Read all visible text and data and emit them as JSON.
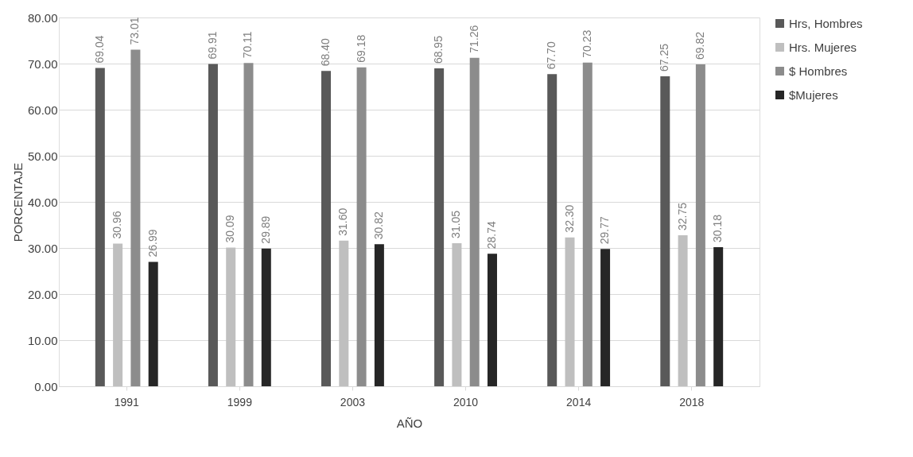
{
  "chart_data": {
    "type": "bar",
    "xlabel": "AÑO",
    "ylabel": "PORCENTAJE",
    "categories": [
      "1991",
      "1999",
      "2003",
      "2010",
      "2014",
      "2018"
    ],
    "series": [
      {
        "name": "Hrs, Hombres",
        "color": "#595959",
        "values": [
          69.04,
          69.91,
          68.4,
          68.95,
          67.7,
          67.25
        ],
        "value_labels": [
          "69.04",
          "69.91",
          "68.40",
          "68.95",
          "67.70",
          "67.25"
        ]
      },
      {
        "name": "Hrs. Mujeres",
        "color": "#bfbfbf",
        "values": [
          30.96,
          30.09,
          31.6,
          31.05,
          32.3,
          32.75
        ],
        "value_labels": [
          "30.96",
          "30.09",
          "31.60",
          "31.05",
          "32.30",
          "32.75"
        ]
      },
      {
        "name": "$ Hombres",
        "color": "#8c8c8c",
        "values": [
          73.01,
          70.11,
          69.18,
          71.26,
          70.23,
          69.82
        ],
        "value_labels": [
          "73.01",
          "70.11",
          "69.18",
          "71.26",
          "70.23",
          "69.82"
        ]
      },
      {
        "name": "$Mujeres",
        "color": "#262626",
        "values": [
          26.99,
          29.89,
          30.82,
          28.74,
          29.77,
          30.18
        ],
        "value_labels": [
          "26.99",
          "29.89",
          "30.82",
          "28.74",
          "29.77",
          "30.18"
        ]
      }
    ],
    "ylim": [
      0,
      80
    ],
    "yticks": [
      {
        "value": 0,
        "label": "0.00"
      },
      {
        "value": 10,
        "label": "10.00"
      },
      {
        "value": 20,
        "label": "20.00"
      },
      {
        "value": 30,
        "label": "30.00"
      },
      {
        "value": 40,
        "label": "40.00"
      },
      {
        "value": 50,
        "label": "50.00"
      },
      {
        "value": 60,
        "label": "60.00"
      },
      {
        "value": 70,
        "label": "70.00"
      },
      {
        "value": 80,
        "label": "80.00"
      }
    ],
    "grid": "y",
    "legend": "right"
  }
}
